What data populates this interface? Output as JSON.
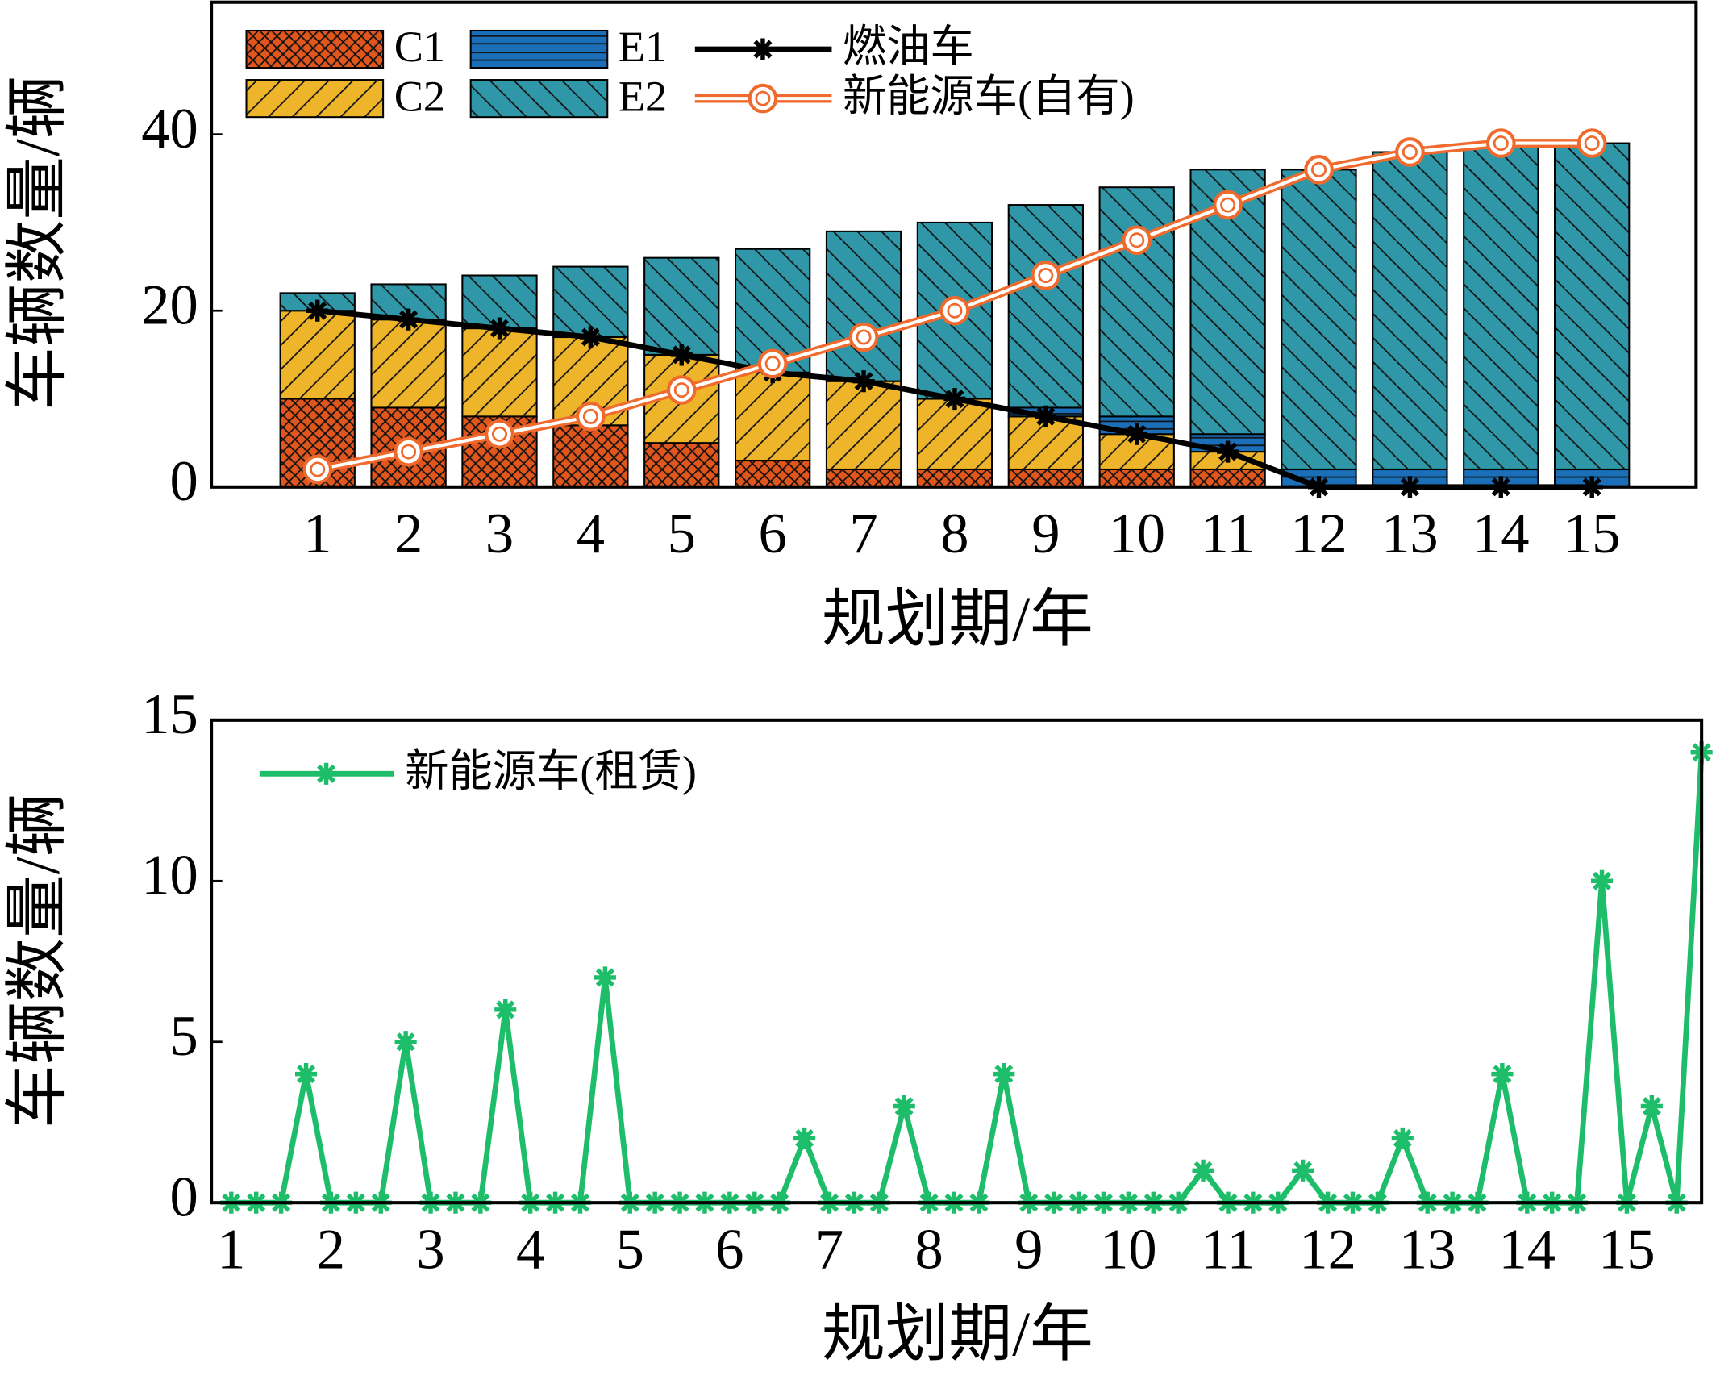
{
  "chart_data": [
    {
      "type": "bar",
      "stacked": true,
      "categories": [
        "1",
        "2",
        "3",
        "4",
        "5",
        "6",
        "7",
        "8",
        "9",
        "10",
        "11",
        "12",
        "13",
        "14",
        "15"
      ],
      "xlabel": "规划期/年",
      "ylabel": "车辆数量/辆",
      "ylim": [
        0,
        55
      ],
      "yticks": [
        0,
        20,
        40
      ],
      "series": [
        {
          "name": "C1",
          "color": "#e0561c",
          "hatch": "x",
          "values": [
            10,
            9,
            8,
            7,
            5,
            3,
            2,
            2,
            2,
            2,
            2,
            0,
            0,
            0,
            0
          ]
        },
        {
          "name": "C2",
          "color": "#eeb52a",
          "hatch": "/",
          "values": [
            10,
            10,
            10,
            10,
            10,
            10,
            10,
            8,
            6,
            4,
            2,
            0,
            0,
            0,
            0
          ]
        },
        {
          "name": "E1",
          "color": "#1a6fb8",
          "hatch": "-",
          "values": [
            0,
            0,
            0,
            0,
            0,
            0,
            0,
            0,
            1,
            2,
            2,
            2,
            2,
            2,
            2
          ]
        },
        {
          "name": "E2",
          "color": "#2f97a7",
          "hatch": "\\",
          "values": [
            2,
            4,
            6,
            8,
            11,
            14,
            17,
            20,
            23,
            26,
            30,
            34,
            36,
            37,
            37
          ]
        },
        {
          "name": "燃油车",
          "type": "line",
          "color": "#000000",
          "marker": "star",
          "values": [
            20,
            19,
            18,
            17,
            15,
            13,
            12,
            10,
            8,
            6,
            4,
            0,
            0,
            0,
            0
          ]
        },
        {
          "name": "新能源车(自有)",
          "type": "line",
          "color": "#ef6a2c",
          "marker": "circle",
          "values": [
            2,
            4,
            6,
            8,
            11,
            14,
            17,
            20,
            24,
            28,
            32,
            36,
            38,
            39,
            39
          ]
        }
      ]
    },
    {
      "type": "line",
      "xlabel": "规划期/年",
      "ylabel": "车辆数量/辆",
      "xlim": [
        0.8,
        15.75
      ],
      "xticks": [
        1,
        2,
        3,
        4,
        5,
        6,
        7,
        8,
        9,
        10,
        11,
        12,
        13,
        14,
        15
      ],
      "ylim": [
        0,
        15
      ],
      "yticks": [
        0,
        5,
        10,
        15
      ],
      "x": [
        1,
        1.25,
        1.5,
        1.75,
        2,
        2.25,
        2.5,
        2.75,
        3,
        3.25,
        3.5,
        3.75,
        4,
        4.25,
        4.5,
        4.75,
        5,
        5.25,
        5.5,
        5.75,
        6,
        6.25,
        6.5,
        6.75,
        7,
        7.25,
        7.5,
        7.75,
        8,
        8.25,
        8.5,
        8.75,
        9,
        9.25,
        9.5,
        9.75,
        10,
        10.25,
        10.5,
        10.75,
        11,
        11.25,
        11.5,
        11.75,
        12,
        12.25,
        12.5,
        12.75,
        13,
        13.25,
        13.5,
        13.75,
        14,
        14.25,
        14.5,
        14.75,
        15,
        15.25,
        15.5,
        15.75
      ],
      "series": [
        {
          "name": "新能源车(租赁)",
          "color": "#1dbd6a",
          "marker": "star",
          "values": [
            0,
            0,
            0,
            4,
            0,
            0,
            0,
            5,
            0,
            0,
            0,
            6,
            0,
            0,
            0,
            7,
            0,
            0,
            0,
            0,
            0,
            0,
            0,
            2,
            0,
            0,
            0,
            3,
            0,
            0,
            0,
            4,
            0,
            0,
            0,
            0,
            0,
            0,
            0,
            1,
            0,
            0,
            0,
            1,
            0,
            0,
            0,
            2,
            0,
            0,
            0,
            4,
            0,
            0,
            0,
            10,
            0,
            3,
            0,
            14
          ]
        }
      ]
    }
  ]
}
